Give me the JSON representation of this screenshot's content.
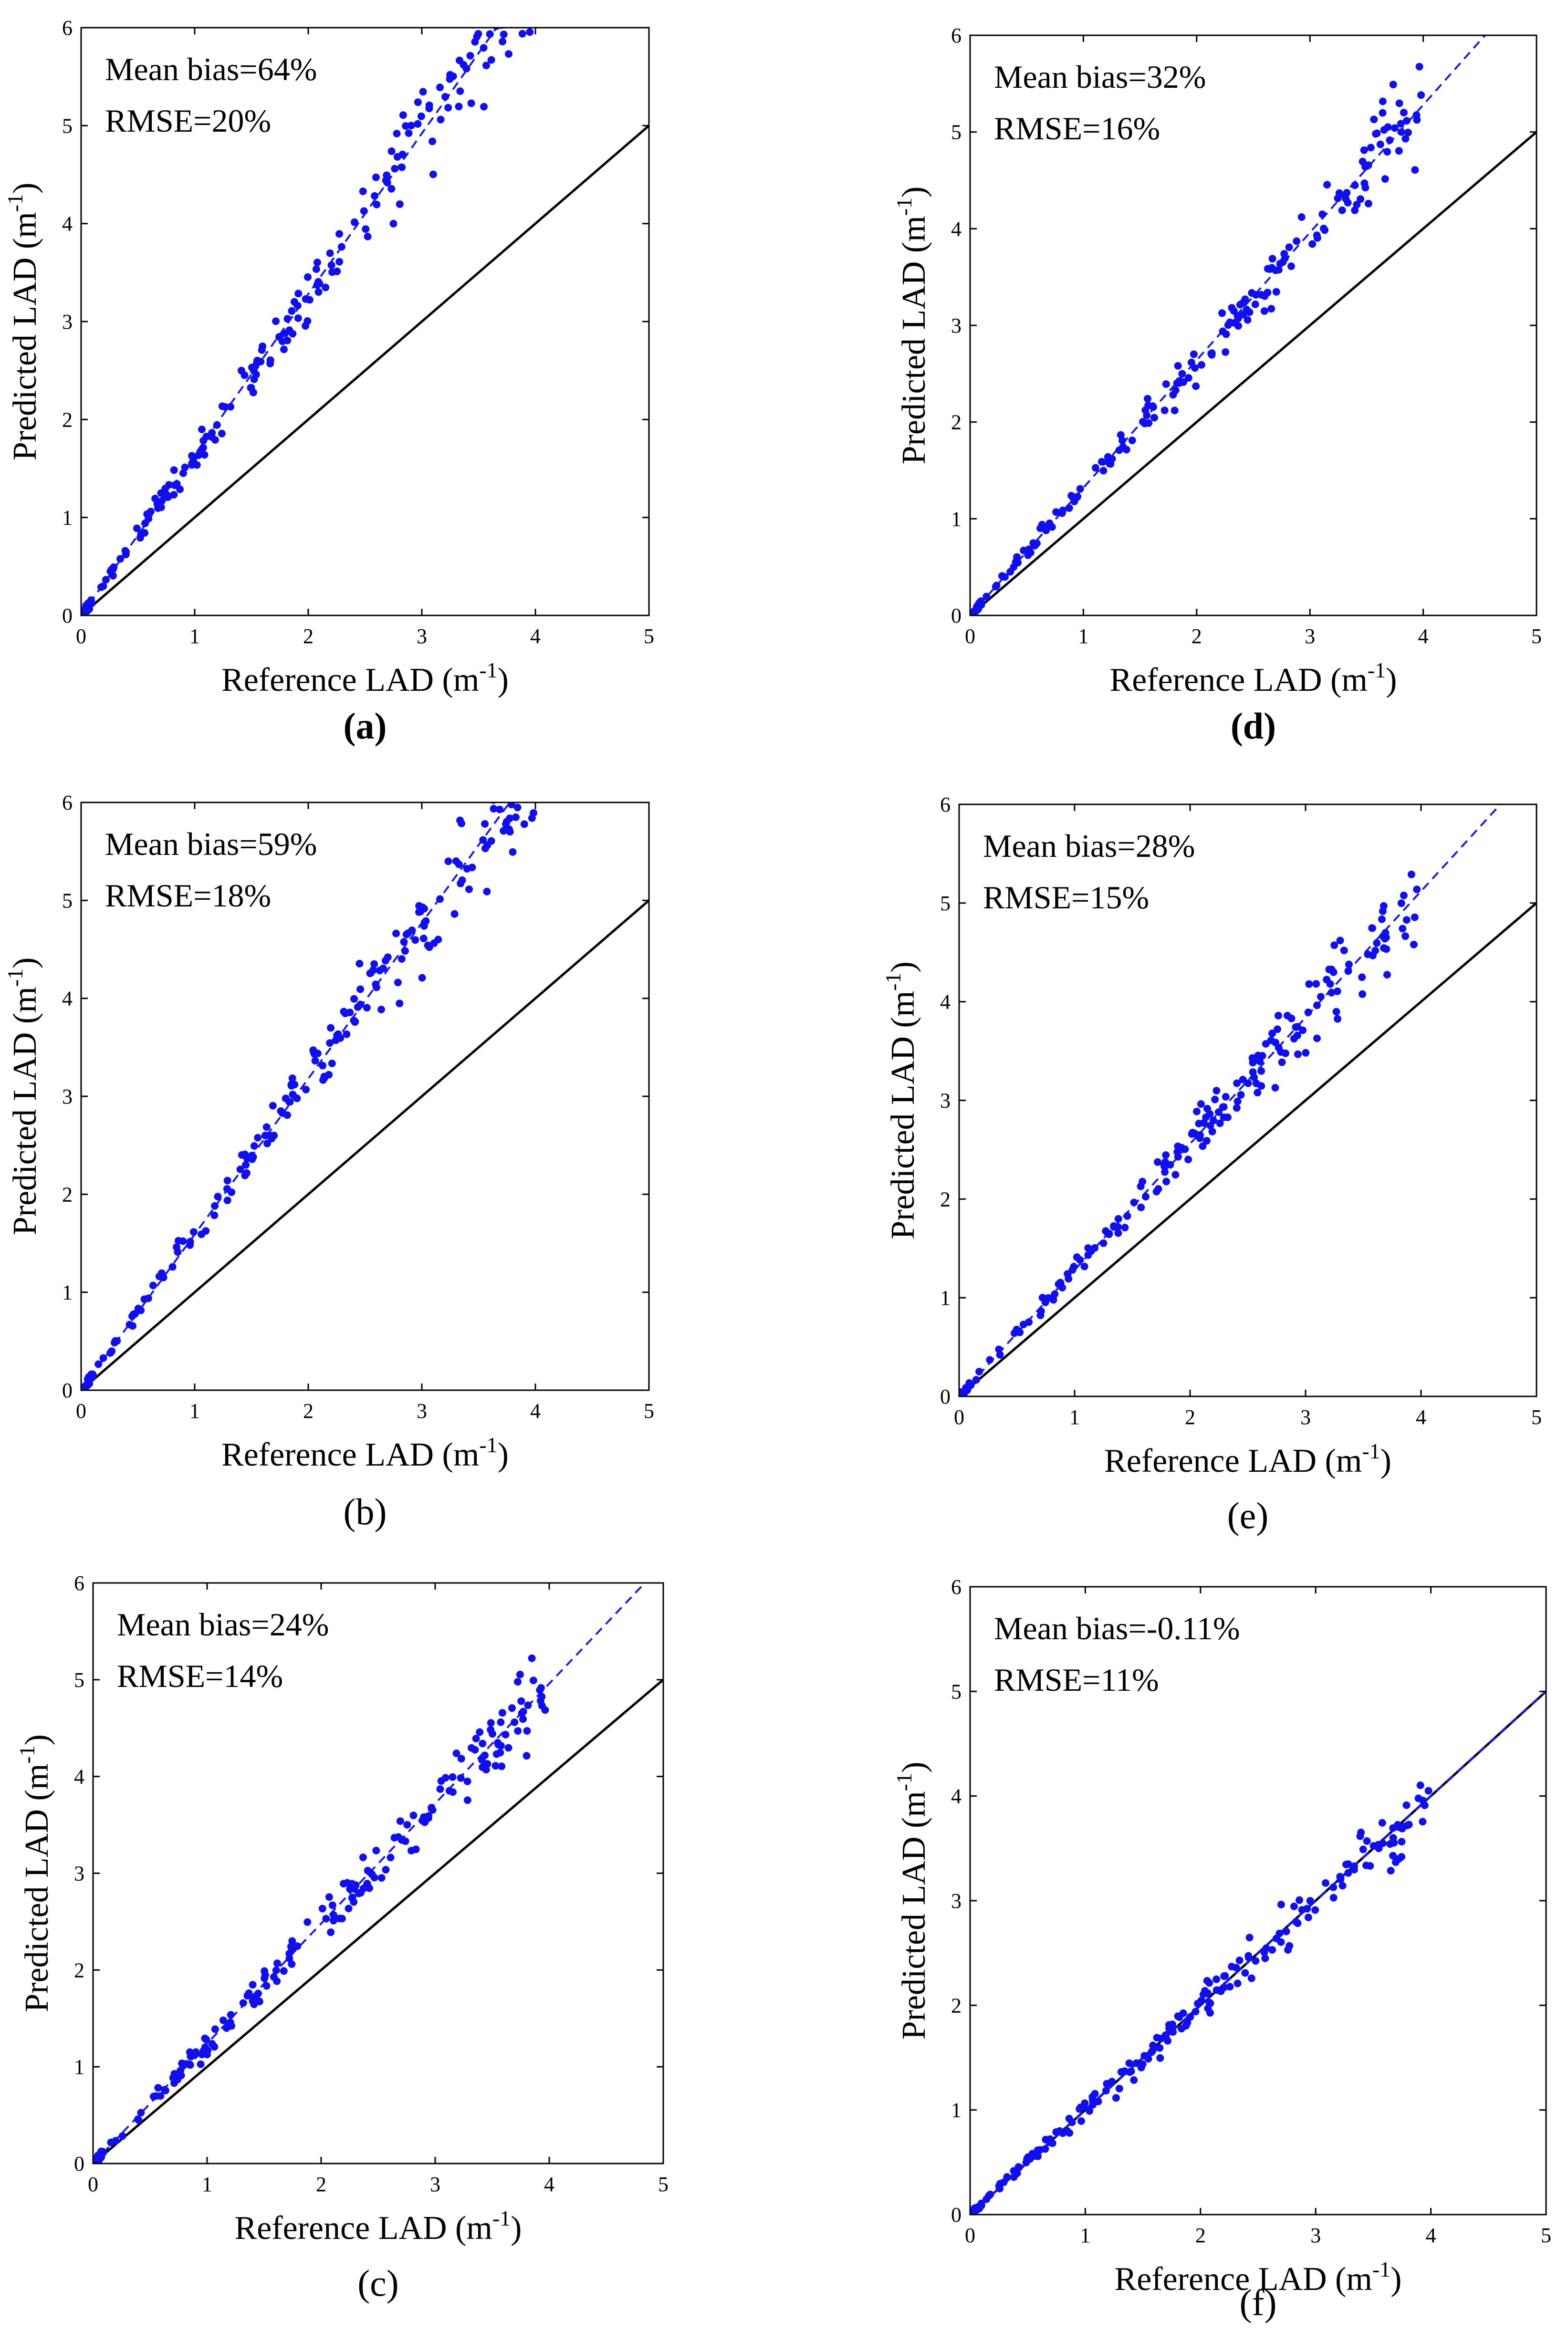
{
  "colors": {
    "point": "#1010ee",
    "fit": "#1a1aee",
    "identity": "#000000",
    "axis": "#000000"
  },
  "chart_data": [
    {
      "type": "scatter",
      "panel_label": "(a)",
      "seed": 11,
      "xlabel": "Reference LAD",
      "ylabel": "Predicted LAD",
      "unit_base": "m",
      "unit_exp": "-1",
      "xlim": [
        0,
        5
      ],
      "ylim": [
        0,
        6
      ],
      "xticks": [
        "0",
        "1",
        "2",
        "3",
        "4",
        "5"
      ],
      "yticks": [
        "0",
        "1",
        "2",
        "3",
        "4",
        "5",
        "6"
      ],
      "annotations": [
        "Mean bias=64%",
        "RMSE=20%"
      ],
      "fit_slope": 1.64,
      "noise_rel": 0.085,
      "identity_line": true
    },
    {
      "type": "scatter",
      "panel_label": "(d)",
      "seed": 23,
      "xlabel": "Reference LAD",
      "ylabel": "Predicted LAD",
      "unit_base": "m",
      "unit_exp": "-1",
      "xlim": [
        0,
        5
      ],
      "ylim": [
        0,
        6
      ],
      "xticks": [
        "0",
        "1",
        "2",
        "3",
        "4",
        "5"
      ],
      "yticks": [
        "0",
        "1",
        "2",
        "3",
        "4",
        "5",
        "6"
      ],
      "annotations": [
        "Mean bias=32%",
        "RMSE=16%"
      ],
      "fit_slope": 1.32,
      "noise_rel": 0.08,
      "identity_line": true
    },
    {
      "type": "scatter",
      "panel_label": "(b)",
      "seed": 37,
      "xlabel": "Reference LAD",
      "ylabel": "Predicted LAD",
      "unit_base": "m",
      "unit_exp": "-1",
      "xlim": [
        0,
        5
      ],
      "ylim": [
        0,
        6
      ],
      "xticks": [
        "0",
        "1",
        "2",
        "3",
        "4",
        "5"
      ],
      "yticks": [
        "0",
        "1",
        "2",
        "3",
        "4",
        "5",
        "6"
      ],
      "annotations": [
        "Mean bias=59%",
        "RMSE=18%"
      ],
      "fit_slope": 1.59,
      "noise_rel": 0.08,
      "identity_line": true
    },
    {
      "type": "scatter",
      "panel_label": "(e)",
      "seed": 41,
      "xlabel": "Reference LAD",
      "ylabel": "Predicted LAD",
      "unit_base": "m",
      "unit_exp": "-1",
      "xlim": [
        0,
        5
      ],
      "ylim": [
        0,
        6
      ],
      "xticks": [
        "0",
        "1",
        "2",
        "3",
        "4",
        "5"
      ],
      "yticks": [
        "0",
        "1",
        "2",
        "3",
        "4",
        "5",
        "6"
      ],
      "annotations": [
        "Mean bias=28%",
        "RMSE=15%"
      ],
      "fit_slope": 1.28,
      "noise_rel": 0.075,
      "identity_line": true
    },
    {
      "type": "scatter",
      "panel_label": "(c)",
      "seed": 53,
      "xlabel": "Reference LAD",
      "ylabel": "Predicted LAD",
      "unit_base": "m",
      "unit_exp": "-1",
      "xlim": [
        0,
        5
      ],
      "ylim": [
        0,
        6
      ],
      "xticks": [
        "0",
        "1",
        "2",
        "3",
        "4",
        "5"
      ],
      "yticks": [
        "0",
        "1",
        "2",
        "3",
        "4",
        "5",
        "6"
      ],
      "annotations": [
        "Mean bias=24%",
        "RMSE=14%"
      ],
      "fit_slope": 1.24,
      "noise_rel": 0.075,
      "identity_line": true
    },
    {
      "type": "scatter",
      "panel_label": "(f)",
      "seed": 67,
      "xlabel": "Reference LAD",
      "ylabel": "Predicted LAD",
      "unit_base": "m",
      "unit_exp": "-1",
      "xlim": [
        0,
        5
      ],
      "ylim": [
        0,
        6
      ],
      "xticks": [
        "0",
        "1",
        "2",
        "3",
        "4",
        "5"
      ],
      "yticks": [
        "0",
        "1",
        "2",
        "3",
        "4",
        "5",
        "6"
      ],
      "annotations": [
        "Mean bias=-0.11%",
        "RMSE=11%"
      ],
      "fit_slope": 1.0,
      "noise_rel": 0.075,
      "identity_line": true
    }
  ]
}
